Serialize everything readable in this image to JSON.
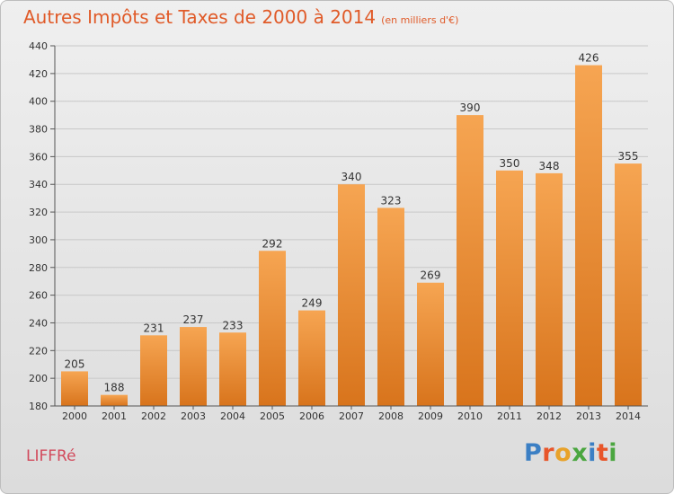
{
  "title": "Autres Impôts et Taxes de 2000 à 2014",
  "subtitle": "(en milliers d'€)",
  "place_label": "LIFFRé",
  "logo": {
    "text": "Proxiti",
    "colors": [
      "#3b7fc4",
      "#e8562a",
      "#e8a22a",
      "#4aa63f",
      "#3b7fc4",
      "#e8562a",
      "#4aa63f"
    ]
  },
  "colors": {
    "bar_light": "#f6a552",
    "bar_dark": "#d8741c",
    "title": "#e05a28"
  },
  "chart_data": {
    "type": "bar",
    "categories": [
      "2000",
      "2001",
      "2002",
      "2003",
      "2004",
      "2005",
      "2006",
      "2007",
      "2008",
      "2009",
      "2010",
      "2011",
      "2012",
      "2013",
      "2014"
    ],
    "values": [
      205,
      188,
      231,
      237,
      233,
      292,
      249,
      340,
      323,
      269,
      390,
      350,
      348,
      426,
      355
    ],
    "ylim": [
      180,
      440
    ],
    "yticks": [
      180,
      200,
      220,
      240,
      260,
      280,
      300,
      320,
      340,
      360,
      380,
      400,
      420,
      440
    ],
    "grid": true,
    "title": "Autres Impôts et Taxes de 2000 à 2014",
    "subtitle": "(en milliers d'€)",
    "xlabel": "",
    "ylabel": ""
  }
}
